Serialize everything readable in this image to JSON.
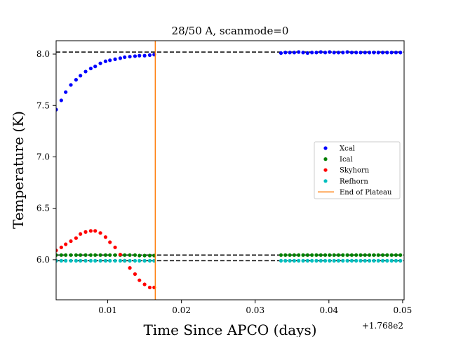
{
  "chart_data": {
    "type": "scatter",
    "title": "28/50 A, scanmode=0",
    "xlabel": "Time Since APCO (days)",
    "ylabel": "Temperature (K)",
    "x_offset_label": "+1.768e2",
    "xlim": [
      0.003,
      0.0502
    ],
    "ylim": [
      5.61,
      8.13
    ],
    "x_ticks": [
      0.01,
      0.02,
      0.03,
      0.04,
      0.05
    ],
    "x_tick_labels": [
      "0.01",
      "0.02",
      "0.03",
      "0.04",
      "0.05"
    ],
    "y_ticks": [
      6.0,
      6.5,
      7.0,
      7.5,
      8.0
    ],
    "y_tick_labels": [
      "6.0",
      "6.5",
      "7.0",
      "7.5",
      "8.0"
    ],
    "legend_position": "center-right",
    "plateau_end_x": 0.01645,
    "plateau_levels": [
      8.02,
      6.045,
      5.99
    ],
    "series": [
      {
        "name": "Xcal",
        "color": "#0000ff",
        "x": [
          0.003,
          0.0037,
          0.0043,
          0.005,
          0.0057,
          0.0063,
          0.007,
          0.0077,
          0.0083,
          0.009,
          0.0097,
          0.0103,
          0.011,
          0.0117,
          0.0123,
          0.013,
          0.0137,
          0.0143,
          0.015,
          0.0157,
          0.0163,
          0.0335,
          0.0341,
          0.0347,
          0.0353,
          0.0359,
          0.0365,
          0.0371,
          0.0377,
          0.0383,
          0.0389,
          0.0395,
          0.0401,
          0.0407,
          0.0413,
          0.0419,
          0.0425,
          0.0431,
          0.0437,
          0.0443,
          0.0449,
          0.0455,
          0.0461,
          0.0467,
          0.0473,
          0.0479,
          0.0485,
          0.0491,
          0.0497
        ],
        "y": [
          7.46,
          7.55,
          7.63,
          7.7,
          7.75,
          7.79,
          7.83,
          7.86,
          7.88,
          7.91,
          7.93,
          7.94,
          7.95,
          7.96,
          7.97,
          7.975,
          7.98,
          7.985,
          7.985,
          7.99,
          7.995,
          8.01,
          8.015,
          8.015,
          8.015,
          8.02,
          8.015,
          8.01,
          8.015,
          8.015,
          8.02,
          8.015,
          8.02,
          8.015,
          8.015,
          8.015,
          8.02,
          8.015,
          8.015,
          8.015,
          8.015,
          8.015,
          8.015,
          8.015,
          8.015,
          8.015,
          8.015,
          8.015,
          8.015
        ]
      },
      {
        "name": "Ical",
        "color": "#008000",
        "x": [
          0.003,
          0.0037,
          0.0043,
          0.005,
          0.0057,
          0.0063,
          0.007,
          0.0077,
          0.0083,
          0.009,
          0.0097,
          0.0103,
          0.011,
          0.0117,
          0.0123,
          0.013,
          0.0137,
          0.0143,
          0.015,
          0.0157,
          0.0163,
          0.0335,
          0.0341,
          0.0347,
          0.0353,
          0.0359,
          0.0365,
          0.0371,
          0.0377,
          0.0383,
          0.0389,
          0.0395,
          0.0401,
          0.0407,
          0.0413,
          0.0419,
          0.0425,
          0.0431,
          0.0437,
          0.0443,
          0.0449,
          0.0455,
          0.0461,
          0.0467,
          0.0473,
          0.0479,
          0.0485,
          0.0491,
          0.0497
        ],
        "y": [
          6.045,
          6.045,
          6.045,
          6.045,
          6.045,
          6.045,
          6.045,
          6.045,
          6.045,
          6.045,
          6.045,
          6.045,
          6.045,
          6.045,
          6.045,
          6.045,
          6.045,
          6.04,
          6.04,
          6.04,
          6.04,
          6.045,
          6.045,
          6.045,
          6.045,
          6.045,
          6.045,
          6.045,
          6.045,
          6.045,
          6.045,
          6.045,
          6.045,
          6.045,
          6.045,
          6.045,
          6.045,
          6.045,
          6.045,
          6.045,
          6.045,
          6.045,
          6.045,
          6.045,
          6.045,
          6.045,
          6.045,
          6.045,
          6.045
        ]
      },
      {
        "name": "Skyhorn",
        "color": "#ff0000",
        "x": [
          0.003,
          0.0037,
          0.0043,
          0.005,
          0.0057,
          0.0063,
          0.007,
          0.0077,
          0.0083,
          0.009,
          0.0097,
          0.0103,
          0.011,
          0.0117,
          0.0123,
          0.013,
          0.0137,
          0.0143,
          0.015,
          0.0157,
          0.0163
        ],
        "y": [
          6.09,
          6.12,
          6.15,
          6.18,
          6.21,
          6.25,
          6.27,
          6.28,
          6.28,
          6.26,
          6.22,
          6.17,
          6.12,
          6.05,
          5.99,
          5.92,
          5.86,
          5.8,
          5.76,
          5.73,
          5.73
        ]
      },
      {
        "name": "Refhorn",
        "color": "#00bfbf",
        "x": [
          0.003,
          0.0037,
          0.0043,
          0.005,
          0.0057,
          0.0063,
          0.007,
          0.0077,
          0.0083,
          0.009,
          0.0097,
          0.0103,
          0.011,
          0.0117,
          0.0123,
          0.013,
          0.0137,
          0.0143,
          0.015,
          0.0157,
          0.0163,
          0.0335,
          0.0341,
          0.0347,
          0.0353,
          0.0359,
          0.0365,
          0.0371,
          0.0377,
          0.0383,
          0.0389,
          0.0395,
          0.0401,
          0.0407,
          0.0413,
          0.0419,
          0.0425,
          0.0431,
          0.0437,
          0.0443,
          0.0449,
          0.0455,
          0.0461,
          0.0467,
          0.0473,
          0.0479,
          0.0485,
          0.0491,
          0.0497
        ],
        "y": [
          5.99,
          5.99,
          5.99,
          5.99,
          5.99,
          5.99,
          5.99,
          5.99,
          5.99,
          5.99,
          5.99,
          5.99,
          5.99,
          5.99,
          5.99,
          5.99,
          5.99,
          5.99,
          5.99,
          5.99,
          5.99,
          5.99,
          5.99,
          5.99,
          5.99,
          5.99,
          5.99,
          5.99,
          5.99,
          5.99,
          5.99,
          5.99,
          5.99,
          5.99,
          5.99,
          5.99,
          5.99,
          5.99,
          5.99,
          5.99,
          5.99,
          5.99,
          5.99,
          5.99,
          5.99,
          5.99,
          5.99,
          5.99,
          5.99
        ]
      }
    ],
    "plateau_line": {
      "name": "End of Plateau",
      "color": "#ff7f0e"
    },
    "reference_line_color": "#000000"
  }
}
